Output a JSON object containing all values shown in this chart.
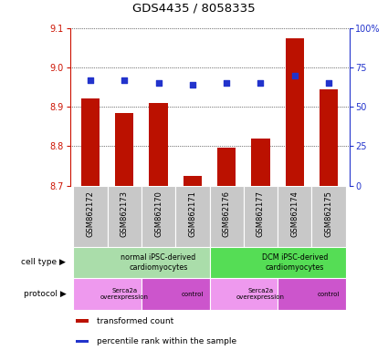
{
  "title": "GDS4435 / 8058335",
  "samples": [
    "GSM862172",
    "GSM862173",
    "GSM862170",
    "GSM862171",
    "GSM862176",
    "GSM862177",
    "GSM862174",
    "GSM862175"
  ],
  "transformed_counts": [
    8.92,
    8.885,
    8.91,
    8.725,
    8.795,
    8.82,
    9.075,
    8.945
  ],
  "percentile_ranks": [
    67,
    67,
    65,
    64,
    65,
    65,
    70,
    65
  ],
  "ylim_left": [
    8.7,
    9.1
  ],
  "ylim_right": [
    0,
    100
  ],
  "yticks_left": [
    8.7,
    8.8,
    8.9,
    9.0,
    9.1
  ],
  "yticks_right": [
    0,
    25,
    50,
    75,
    100
  ],
  "ytick_labels_right": [
    "0",
    "25",
    "50",
    "75",
    "100%"
  ],
  "bar_color": "#bb1100",
  "dot_color": "#2233cc",
  "bar_width": 0.55,
  "cell_types": [
    {
      "label": "normal iPSC-derived\ncardiomyocytes",
      "start": 0,
      "end": 4,
      "color": "#aaddaa"
    },
    {
      "label": "DCM iPSC-derived\ncardiomyocytes",
      "start": 4,
      "end": 8,
      "color": "#55dd55"
    }
  ],
  "protocols": [
    {
      "label": "Serca2a\noverexpression",
      "start": 0,
      "end": 2,
      "color": "#ee99ee"
    },
    {
      "label": "control",
      "start": 2,
      "end": 4,
      "color": "#cc55cc"
    },
    {
      "label": "Serca2a\noverexpression",
      "start": 4,
      "end": 6,
      "color": "#ee99ee"
    },
    {
      "label": "control",
      "start": 6,
      "end": 8,
      "color": "#cc55cc"
    }
  ],
  "left_axis_color": "#cc1100",
  "right_axis_color": "#2233cc",
  "grid_color": "black",
  "tick_gray_bg": "#c8c8c8",
  "cell_type_label": "cell type",
  "protocol_label": "protocol",
  "legend_items": [
    {
      "color": "#bb1100",
      "label": "transformed count"
    },
    {
      "color": "#2233cc",
      "label": "percentile rank within the sample"
    }
  ]
}
